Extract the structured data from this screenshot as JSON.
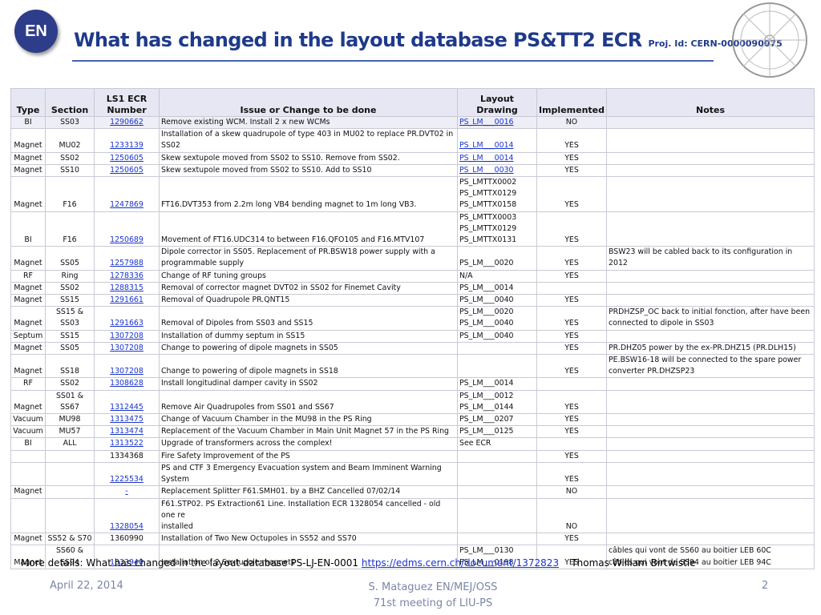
{
  "header": {
    "badge": "EN",
    "title": "What has changed in the layout database PS&TT2 ECR",
    "project": "Proj. Id: CERN-0000090075"
  },
  "table": {
    "columns": [
      "Type",
      "Section",
      "LS1 ECR\nNumber",
      "Issue or Change to be done",
      "Layout Drawing",
      "Implemented",
      "Notes"
    ],
    "rows": [
      [
        "BI",
        "SS03",
        "1290662",
        "Remove existing WCM. Install 2 x new WCMs",
        "PS_LM___0016",
        "NO",
        null
      ],
      [
        "Magnet",
        "MU02",
        "1233139",
        "Installation of a skew quadrupole of type 403 in MU02 to replace PR.DVT02 in\nSS02",
        "PS_LM___0014",
        "YES",
        null
      ],
      [
        "Magnet",
        "SS02",
        "1250605",
        "Skew sextupole moved from SS02 to SS10. Remove from SS02.",
        "PS_LM___0014",
        "YES",
        null
      ],
      [
        "Magnet",
        "SS10",
        "1250605",
        "Skew sextupole moved from SS02 to SS10. Add to SS10",
        "PS_LM___0030",
        "YES",
        null
      ],
      [
        "Magnet",
        "F16",
        "1247869",
        "FT16.DVT353 from 2.2m long VB4 bending magnet to 1m long VB3.",
        "PS_LMTTX0002\nPS_LMTTX0129\nPS_LMTTX0158",
        "YES",
        null
      ],
      [
        "BI",
        "F16",
        "1250689",
        "Movement of FT16.UDC314 to between F16.QFO105 and F16.MTV107",
        "PS_LMTTX0003\nPS_LMTTX0129\nPS_LMTTX0131",
        "YES",
        null
      ],
      [
        "Magnet",
        "SS05",
        "1257988",
        "Dipole corrector in SS05. Replacement of PR.BSW18 power supply with a\nprogrammable supply",
        "PS_LM___0020",
        "YES",
        "BSW23 will be cabled back to its configuration in 2012"
      ],
      [
        "RF",
        "Ring",
        "1278336",
        "Change of RF tuning groups",
        "N/A",
        "YES",
        null
      ],
      [
        "Magnet",
        "SS02",
        "1288315",
        "Removal of corrector magnet DVT02 in SS02 for Finemet Cavity",
        "PS_LM___0014",
        null,
        null
      ],
      [
        "Magnet",
        "SS15",
        "1291661",
        "Removal of Quadrupole PR.QNT15",
        "PS_LM___0040",
        "YES",
        null
      ],
      [
        "Magnet",
        "SS15 & SS03",
        "1291663",
        "Removal of Dipoles from SS03 and SS15",
        "PS_LM___0020\nPS_LM___0040",
        "YES",
        "PRDHZSP_OC back to initial fonction, after have been\nconnected to dipole in SS03"
      ],
      [
        "Septum",
        "SS15",
        "1307208",
        "Installation of dummy septum in SS15",
        "PS_LM___0040",
        "YES",
        null
      ],
      [
        "Magnet",
        "SS05",
        "1307208",
        "Change to powering of dipole magnets in SS05",
        null,
        "YES",
        "PR.DHZ05 power by the ex-PR.DHZ15 (PR.DLH15)"
      ],
      [
        "Magnet",
        "SS18",
        "1307208",
        "Change to powering of dipole magnets in SS18",
        null,
        "YES",
        "PE.BSW16-18 will be connected to the spare power\nconverter PR.DHZSP23"
      ],
      [
        "RF",
        "SS02",
        "1308628",
        "Install longitudinal damper cavity in SS02",
        "PS_LM___0014",
        null,
        null
      ],
      [
        "Magnet",
        "SS01 & SS67",
        "1312445",
        "Remove Air Quadrupoles from SS01 and SS67",
        "PS_LM___0012\nPS_LM___0144",
        "YES",
        null
      ],
      [
        "Vacuum",
        "MU98",
        "1313475",
        "Change of Vacuum Chamber in the MU98 in the PS Ring",
        "PS_LM___0207",
        "YES",
        null
      ],
      [
        "Vacuum",
        "MU57",
        "1313474",
        "Replacement of the Vacuum Chamber in Main Unit Magnet 57 in the PS Ring",
        "PS_LM___0125",
        "YES",
        null
      ],
      [
        "BI",
        "ALL",
        "1313522",
        "Upgrade of transformers across the complex!",
        "See ECR",
        null,
        null
      ],
      [
        null,
        null,
        "1334368",
        "Fire Safety Improvement of the PS",
        null,
        "YES",
        null
      ],
      [
        null,
        null,
        "1225534",
        "PS and CTF 3 Emergency Evacuation system and Beam Imminent Warning\nSystem",
        null,
        "YES",
        null
      ],
      [
        "Magnet",
        null,
        "-",
        "Replacement Splitter F61.SMH01. by a BHZ Cancelled 07/02/14",
        null,
        "NO",
        null
      ],
      [
        null,
        null,
        "1328054",
        "F61.STP02. PS Extraction61 Line. Installation ECR 1328054 cancelled - old one re\ninstalled",
        null,
        "NO",
        null
      ],
      [
        "Magnet",
        "SS52 & S70",
        "1360990",
        "Installation of Two New Octupoles in SS52 and SS70",
        null,
        "YES",
        null
      ],
      [
        "Magnet",
        "SS60 & SS94",
        "1333940",
        "Installation of 2 Sextupole magnets",
        "PS_LM___0130\nPS_LM___0198",
        "YES",
        "câbles qui vont de SS60  au boitier LEB 60C\ncâbles qui vont de SS94 au boitier LEB 94C"
      ]
    ]
  },
  "details": {
    "text": "More details: What has changed in the layout database PS-LJ-EN-0001",
    "link": "https://edms.cern.ch/document/1372823",
    "author": "Thomas William Birtwistle"
  },
  "footer": {
    "date": "April 22, 2014",
    "presenter": "S. Mataguez EN/MEJ/OSS",
    "meeting": "71st meeting of LIU-PS",
    "page": "2"
  }
}
